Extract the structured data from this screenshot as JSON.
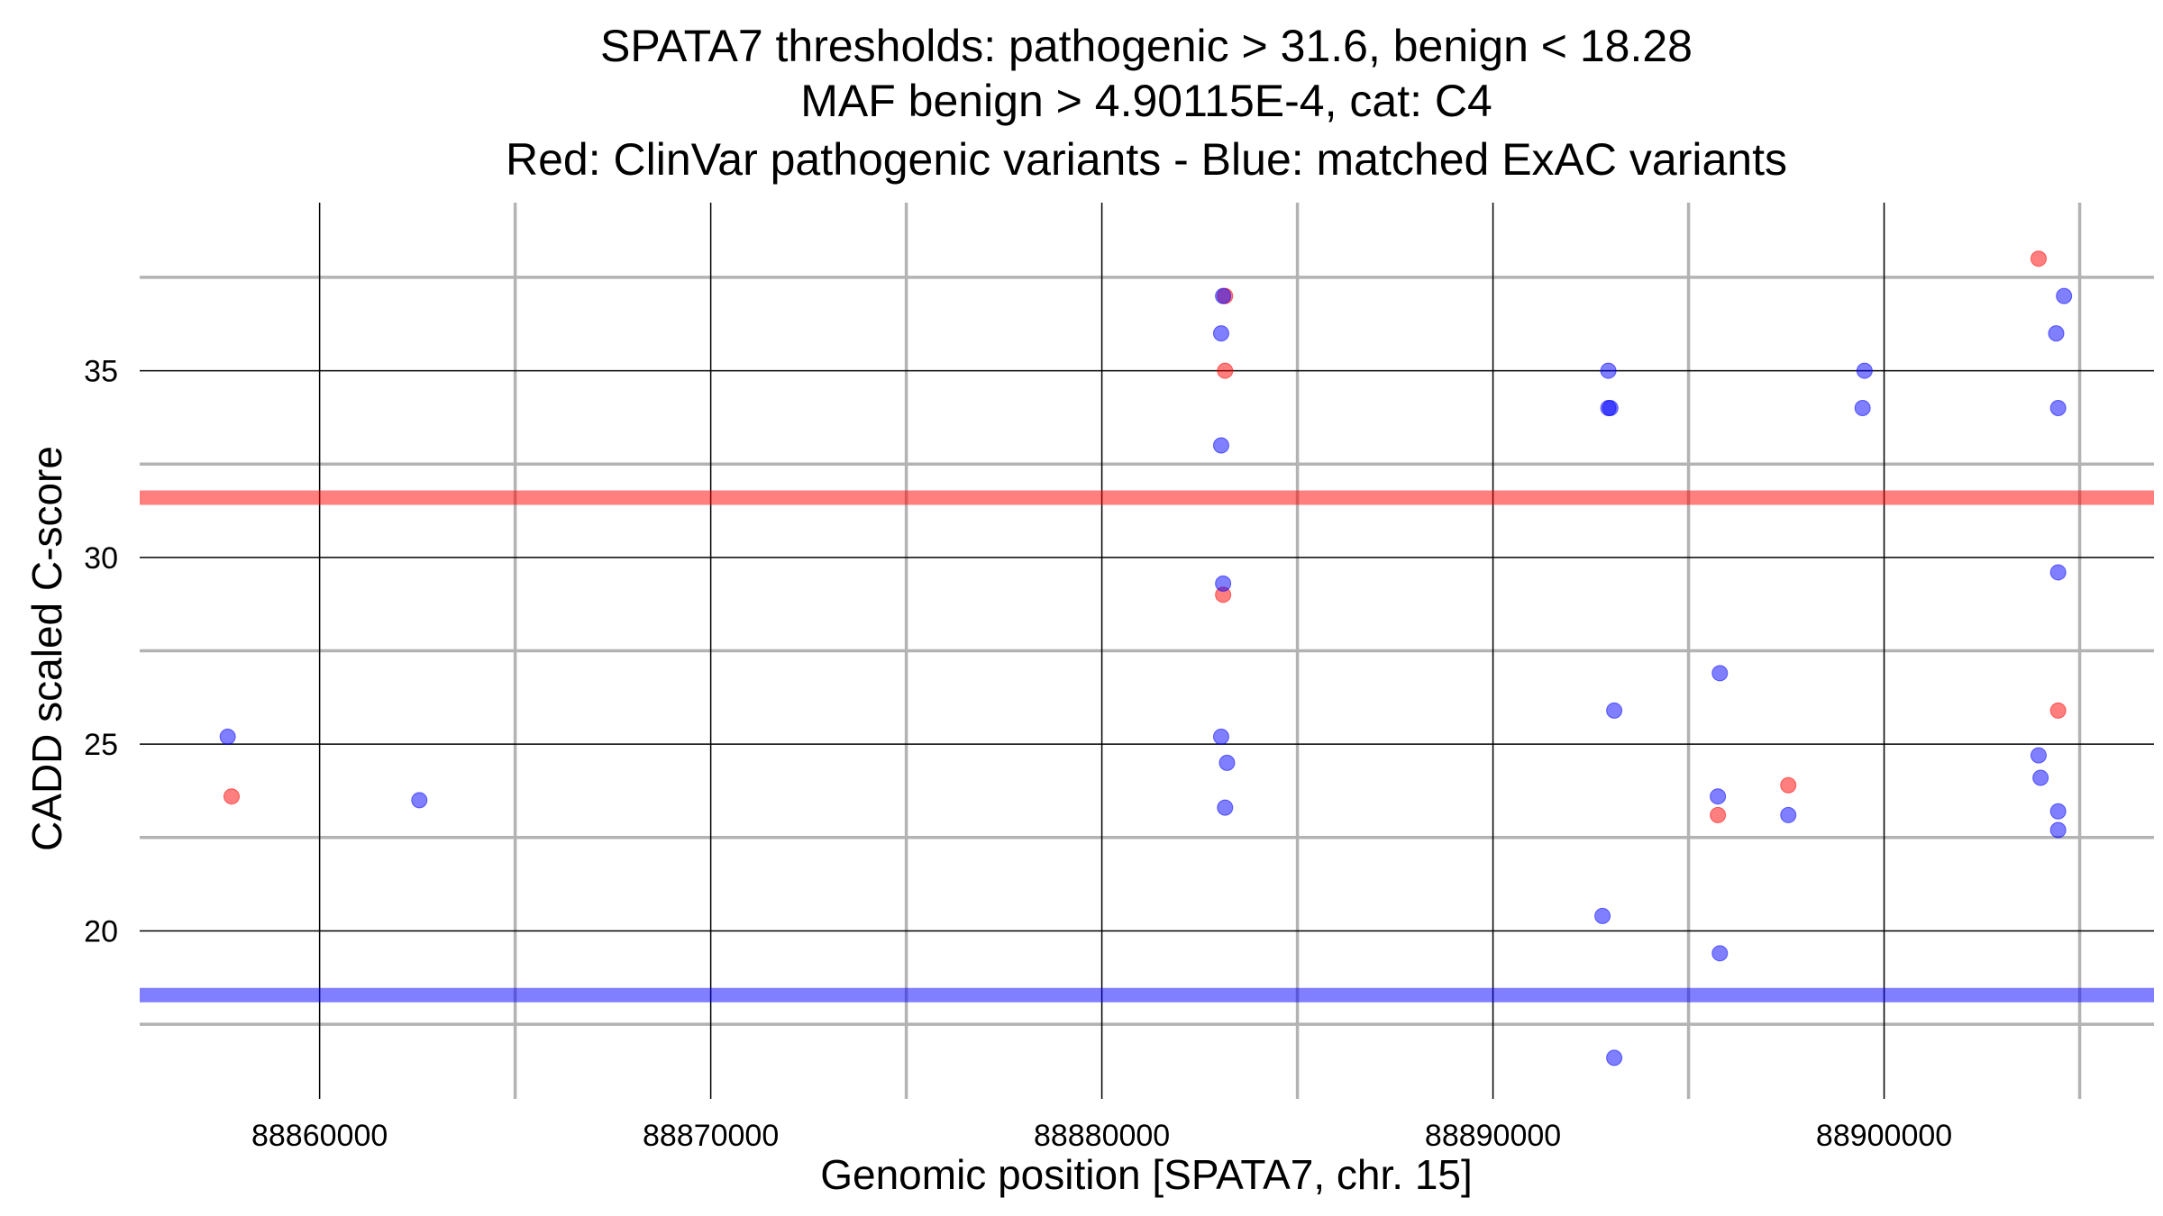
{
  "title_lines": [
    "SPATA7 thresholds: pathogenic > 31.6, benign < 18.28",
    "MAF benign > 4.90115E-4, cat: C4",
    "Red: ClinVar pathogenic variants - Blue: matched ExAC variants"
  ],
  "chart_data": {
    "type": "scatter",
    "title": "SPATA7 thresholds: pathogenic > 31.6, benign < 18.28\nMAF benign > 4.90115E-4, cat: C4\nRed: ClinVar pathogenic variants - Blue: matched ExAC variants",
    "xlabel": "Genomic position [SPATA7, chr. 15]",
    "ylabel": "CADD scaled C-score",
    "xlim": [
      88855400,
      88906900
    ],
    "ylim": [
      15.5,
      39.5
    ],
    "x_ticks": [
      88860000,
      88870000,
      88880000,
      88890000,
      88900000
    ],
    "x_tick_labels": [
      "88860000",
      "88870000",
      "88880000",
      "88890000",
      "88900000"
    ],
    "x_minor_grid": [
      88865000,
      88875000,
      88885000,
      88895000,
      88905000
    ],
    "y_ticks": [
      20,
      25,
      30,
      35
    ],
    "y_tick_labels": [
      "20",
      "25",
      "30",
      "35"
    ],
    "y_minor_grid": [
      17.5,
      22.5,
      27.5,
      32.5,
      37.5
    ],
    "grid": true,
    "thresholds": [
      {
        "name": "pathogenic",
        "value": 31.6,
        "color": "#ff0000"
      },
      {
        "name": "benign",
        "value": 18.28,
        "color": "#0000ff"
      }
    ],
    "series": [
      {
        "color": "#ff0000",
        "points": [
          {
            "x": 88857750,
            "y": 23.6
          },
          {
            "x": 88883150,
            "y": 37.0
          },
          {
            "x": 88883150,
            "y": 35.0
          },
          {
            "x": 88883100,
            "y": 29.0
          },
          {
            "x": 88895750,
            "y": 23.1
          },
          {
            "x": 88897550,
            "y": 23.9
          },
          {
            "x": 88903950,
            "y": 38.0
          },
          {
            "x": 88904450,
            "y": 25.9
          }
        ]
      },
      {
        "color": "#0000ff",
        "points": [
          {
            "x": 88857650,
            "y": 25.2
          },
          {
            "x": 88862550,
            "y": 23.5
          },
          {
            "x": 88883100,
            "y": 37.0
          },
          {
            "x": 88883050,
            "y": 36.0
          },
          {
            "x": 88883050,
            "y": 33.0
          },
          {
            "x": 88883100,
            "y": 29.3
          },
          {
            "x": 88883050,
            "y": 25.2
          },
          {
            "x": 88883200,
            "y": 24.5
          },
          {
            "x": 88883150,
            "y": 23.3
          },
          {
            "x": 88892950,
            "y": 35.0
          },
          {
            "x": 88892950,
            "y": 34.0
          },
          {
            "x": 88893000,
            "y": 34.0
          },
          {
            "x": 88893100,
            "y": 25.9
          },
          {
            "x": 88892800,
            "y": 20.4
          },
          {
            "x": 88893100,
            "y": 16.6
          },
          {
            "x": 88895800,
            "y": 26.9
          },
          {
            "x": 88895750,
            "y": 23.6
          },
          {
            "x": 88895800,
            "y": 19.4
          },
          {
            "x": 88897550,
            "y": 23.1
          },
          {
            "x": 88899500,
            "y": 35.0
          },
          {
            "x": 88899450,
            "y": 34.0
          },
          {
            "x": 88904600,
            "y": 37.0
          },
          {
            "x": 88904400,
            "y": 36.0
          },
          {
            "x": 88904450,
            "y": 34.0
          },
          {
            "x": 88904450,
            "y": 29.6
          },
          {
            "x": 88903950,
            "y": 24.7
          },
          {
            "x": 88904000,
            "y": 24.1
          },
          {
            "x": 88904450,
            "y": 23.2
          },
          {
            "x": 88904450,
            "y": 22.7
          }
        ]
      }
    ]
  }
}
